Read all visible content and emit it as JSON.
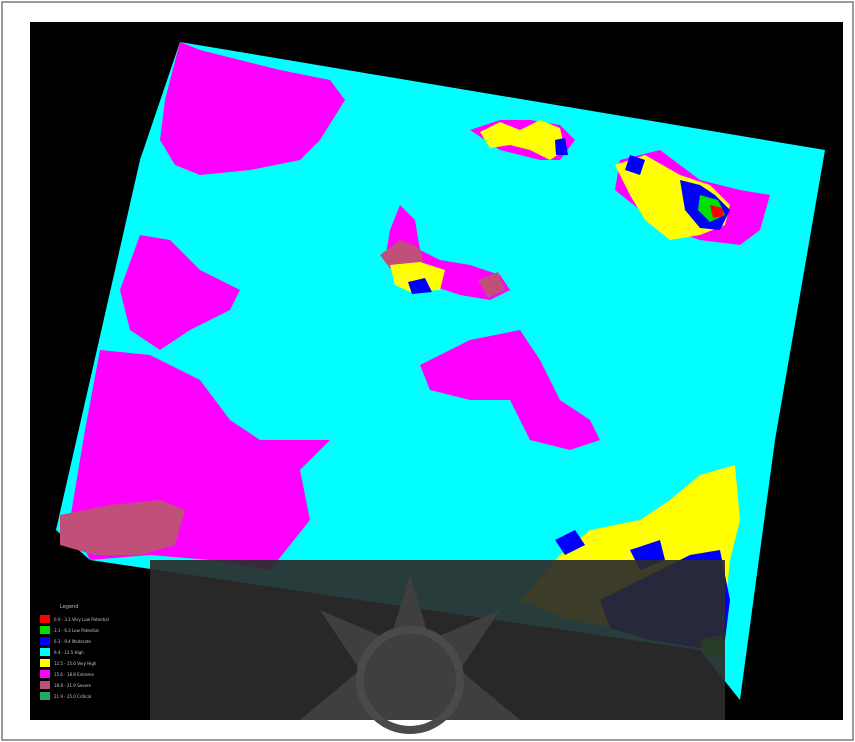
{
  "map": {
    "legend": {
      "title": "Legend",
      "items": [
        {
          "label": "0.0 - 3.1 Very Low Potential",
          "color": "#ff0000"
        },
        {
          "label": "3.1 - 6.3 Low Potential",
          "color": "#00e000"
        },
        {
          "label": "6.3 - 9.4 Moderate",
          "color": "#0000ff"
        },
        {
          "label": "9.4 - 12.5 High",
          "color": "#00ffff"
        },
        {
          "label": "12.5 - 15.6 Very High",
          "color": "#ffff00"
        },
        {
          "label": "15.6 - 18.8 Extreme",
          "color": "#ff00ff"
        },
        {
          "label": "18.8 - 21.9 Severe",
          "color": "#c0507a"
        },
        {
          "label": "21.9 - 25.0 Critical",
          "color": "#22aa66"
        }
      ]
    },
    "colors": {
      "background": "#000000",
      "base": "#00ffff",
      "magenta": "#ff00ff",
      "yellow": "#ffff00",
      "blue": "#0000ff",
      "green": "#00e000",
      "red": "#ff0000",
      "rose": "#c0507a",
      "watermark": "#3a3a3a"
    }
  }
}
